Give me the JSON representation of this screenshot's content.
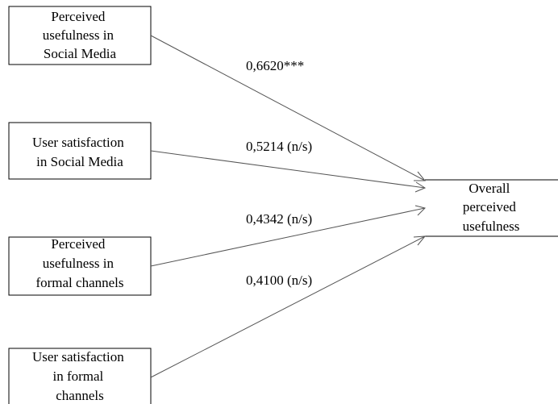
{
  "nodes": {
    "pu_social": {
      "lines": [
        "Perceived",
        "usefulness in",
        "Social Media"
      ]
    },
    "us_social": {
      "lines": [
        "User satisfaction",
        "in Social Media"
      ]
    },
    "pu_formal": {
      "lines": [
        "Perceived",
        "usefulness in",
        "formal channels"
      ]
    },
    "us_formal": {
      "lines": [
        "User satisfaction",
        "in formal",
        "channels"
      ]
    },
    "overall": {
      "lines": [
        "Overall",
        "perceived",
        "usefulness"
      ]
    }
  },
  "paths": [
    {
      "from": "pu_social",
      "to": "overall",
      "coefficient": "0,6620***"
    },
    {
      "from": "us_social",
      "to": "overall",
      "coefficient": "0,5214 (n/s)"
    },
    {
      "from": "pu_formal",
      "to": "overall",
      "coefficient": "0,4342 (n/s)"
    },
    {
      "from": "us_formal",
      "to": "overall",
      "coefficient": "0,4100 (n/s)"
    }
  ],
  "colors": {
    "line": "#555555",
    "border": "#000000",
    "text": "#000000"
  }
}
